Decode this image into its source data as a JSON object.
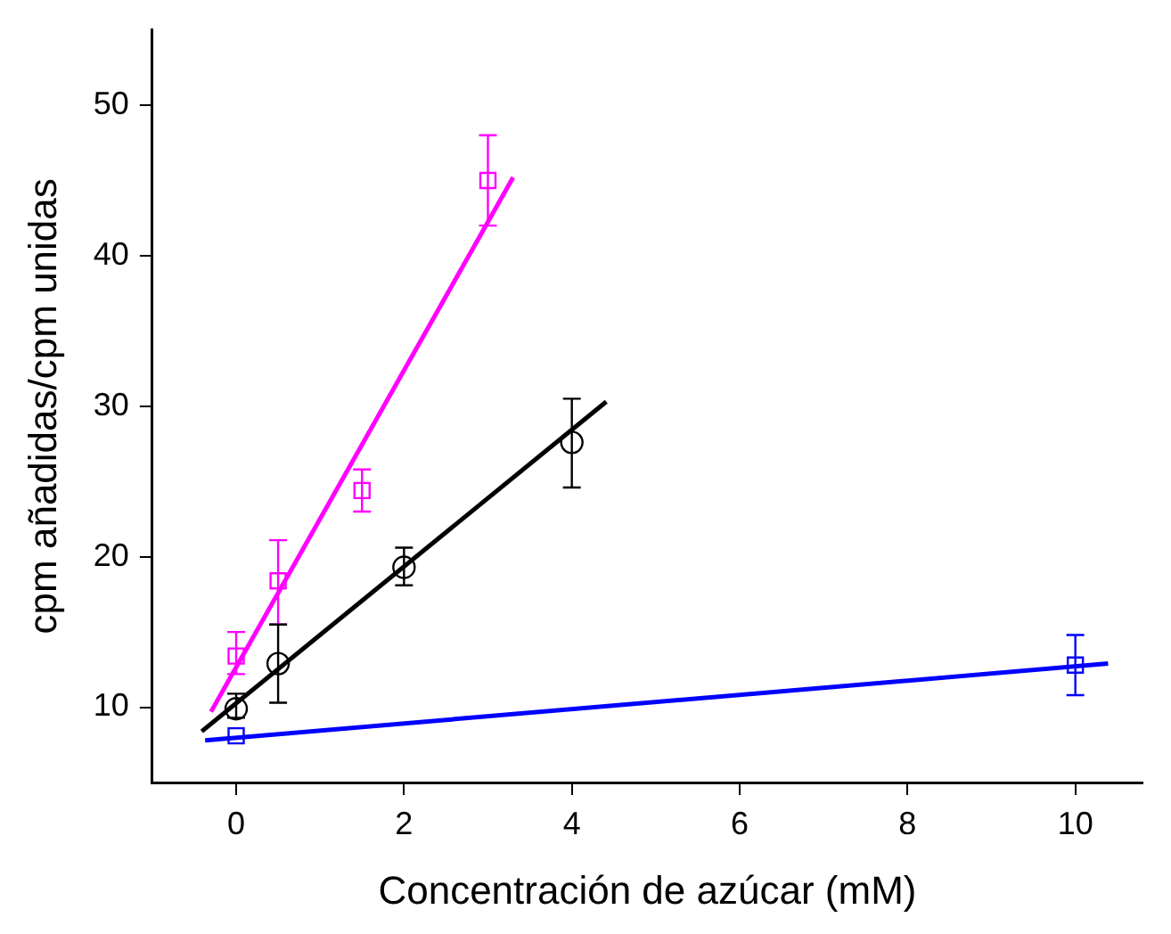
{
  "chart_data": {
    "type": "scatter",
    "xlabel": "Concentración de azúcar (mM)",
    "ylabel": "cpm añadidas/cpm unidas",
    "xlim": [
      -1,
      10.8
    ],
    "ylim": [
      5,
      55
    ],
    "xticks": [
      0,
      2,
      4,
      6,
      8,
      10
    ],
    "yticks": [
      10,
      20,
      30,
      40,
      50
    ],
    "grid": false,
    "legend": false,
    "series": [
      {
        "type": "scatter",
        "marker": "square",
        "color": "#ff00ff",
        "x": [
          0,
          0.5,
          1.5,
          3
        ],
        "values": [
          13.4,
          18.4,
          24.4,
          45
        ],
        "errors": [
          [
            12.2,
            15.0
          ],
          [
            15.5,
            21.1
          ],
          [
            23,
            25.8
          ],
          [
            42,
            48
          ]
        ]
      },
      {
        "type": "scatter",
        "marker": "circle",
        "color": "#000000",
        "x": [
          0,
          0.5,
          2,
          4
        ],
        "values": [
          9.9,
          12.9,
          19.3,
          27.6
        ],
        "errors": [
          [
            9.3,
            10.9
          ],
          [
            10.3,
            15.5
          ],
          [
            18.1,
            20.6
          ],
          [
            24.6,
            30.5
          ]
        ]
      },
      {
        "type": "scatter",
        "marker": "square",
        "color": "#0000ff",
        "x": [
          0,
          10
        ],
        "values": [
          8.1,
          12.8
        ],
        "errors": [
          null,
          [
            10.8,
            14.8
          ]
        ]
      },
      {
        "type": "line",
        "marker": "none",
        "color": "#ff00ff",
        "x": [
          -0.3,
          3.3
        ],
        "values": [
          9.7,
          45.2
        ]
      },
      {
        "type": "line",
        "marker": "none",
        "color": "#000000",
        "x": [
          -0.41,
          4.41
        ],
        "values": [
          8.4,
          30.3
        ]
      },
      {
        "type": "line",
        "marker": "none",
        "color": "#0000ff",
        "x": [
          -0.37,
          10.39
        ],
        "values": [
          7.8,
          12.9
        ]
      }
    ]
  }
}
